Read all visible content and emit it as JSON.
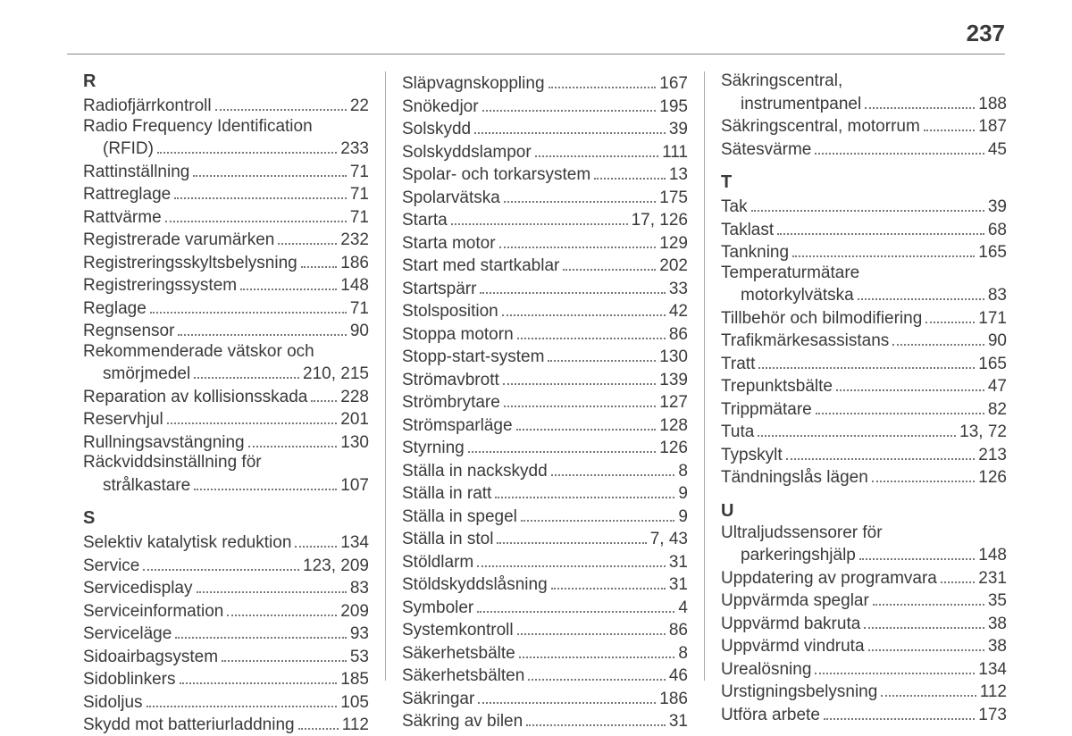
{
  "page_number": "237",
  "columns": [
    {
      "groups": [
        {
          "heading": "R",
          "items": [
            {
              "label": "Radiofjärrkontroll",
              "page": "22"
            },
            {
              "label": "Radio Frequency Identification",
              "page": "",
              "nowrap": true
            },
            {
              "label": "(RFID)",
              "page": "233",
              "cont": true
            },
            {
              "label": "Rattinställning",
              "page": "71"
            },
            {
              "label": "Rattreglage",
              "page": "71"
            },
            {
              "label": "Rattvärme",
              "page": "71"
            },
            {
              "label": "Registrerade varumärken",
              "page": "232"
            },
            {
              "label": "Registreringsskyltsbelysning",
              "page": "186"
            },
            {
              "label": "Registreringssystem",
              "page": "148"
            },
            {
              "label": "Reglage",
              "page": "71"
            },
            {
              "label": "Regnsensor",
              "page": "90"
            },
            {
              "label": "Rekommenderade vätskor och",
              "page": "",
              "nowrap": true
            },
            {
              "label": "smörjmedel",
              "page": "210, 215",
              "cont": true
            },
            {
              "label": "Reparation av kollisionsskada",
              "page": "228"
            },
            {
              "label": "Reservhjul",
              "page": "201"
            },
            {
              "label": "Rullningsavstängning",
              "page": "130"
            },
            {
              "label": "Räckviddsinställning för",
              "page": "",
              "nowrap": true
            },
            {
              "label": "strålkastare",
              "page": "107",
              "cont": true
            }
          ]
        },
        {
          "heading": "S",
          "items": [
            {
              "label": "Selektiv katalytisk reduktion",
              "page": "134"
            },
            {
              "label": "Service",
              "page": "123, 209"
            },
            {
              "label": "Servicedisplay",
              "page": "83"
            },
            {
              "label": "Serviceinformation",
              "page": "209"
            },
            {
              "label": "Serviceläge",
              "page": "93"
            },
            {
              "label": "Sidoairbagsystem",
              "page": "53"
            },
            {
              "label": "Sidoblinkers",
              "page": "185"
            },
            {
              "label": "Sidoljus",
              "page": "105"
            },
            {
              "label": "Skydd mot batteriurladdning",
              "page": "112"
            }
          ]
        }
      ]
    },
    {
      "groups": [
        {
          "heading": "",
          "items": [
            {
              "label": "Släpvagnskoppling",
              "page": "167"
            },
            {
              "label": "Snökedjor",
              "page": "195"
            },
            {
              "label": "Solskydd",
              "page": "39"
            },
            {
              "label": "Solskyddslampor",
              "page": "111"
            },
            {
              "label": "Spolar- och torkarsystem",
              "page": "13"
            },
            {
              "label": "Spolarvätska",
              "page": "175"
            },
            {
              "label": "Starta",
              "page": "17, 126"
            },
            {
              "label": "Starta motor",
              "page": "129"
            },
            {
              "label": "Start med startkablar",
              "page": "202"
            },
            {
              "label": "Startspärr",
              "page": "33"
            },
            {
              "label": "Stolsposition",
              "page": "42"
            },
            {
              "label": "Stoppa motorn",
              "page": "86"
            },
            {
              "label": "Stopp-start-system",
              "page": "130"
            },
            {
              "label": "Strömavbrott",
              "page": "139"
            },
            {
              "label": "Strömbrytare",
              "page": "127"
            },
            {
              "label": "Strömsparläge",
              "page": "128"
            },
            {
              "label": "Styrning",
              "page": "126"
            },
            {
              "label": "Ställa in nackskydd",
              "page": "8"
            },
            {
              "label": "Ställa in ratt",
              "page": "9"
            },
            {
              "label": "Ställa in spegel",
              "page": "9"
            },
            {
              "label": "Ställa in stol",
              "page": "7, 43"
            },
            {
              "label": "Stöldlarm",
              "page": "31"
            },
            {
              "label": "Stöldskyddslåsning",
              "page": "31"
            },
            {
              "label": "Symboler",
              "page": "4"
            },
            {
              "label": "Systemkontroll",
              "page": "86"
            },
            {
              "label": "Säkerhetsbälte",
              "page": "8"
            },
            {
              "label": "Säkerhetsbälten",
              "page": "46"
            },
            {
              "label": "Säkringar",
              "page": "186"
            },
            {
              "label": "Säkring av bilen",
              "page": "31"
            }
          ]
        }
      ]
    },
    {
      "groups": [
        {
          "heading": "",
          "items": [
            {
              "label": "Säkringscentral,",
              "page": "",
              "nowrap": true
            },
            {
              "label": "instrumentpanel",
              "page": "188",
              "cont": true
            },
            {
              "label": "Säkringscentral, motorrum",
              "page": "187"
            },
            {
              "label": "Sätesvärme",
              "page": "45"
            }
          ]
        },
        {
          "heading": "T",
          "items": [
            {
              "label": "Tak",
              "page": "39"
            },
            {
              "label": "Taklast",
              "page": "68"
            },
            {
              "label": "Tankning",
              "page": "165"
            },
            {
              "label": "Temperaturmätare",
              "page": "",
              "nowrap": true
            },
            {
              "label": "motorkylvätska",
              "page": "83",
              "cont": true
            },
            {
              "label": "Tillbehör och bilmodifiering",
              "page": "171"
            },
            {
              "label": "Trafikmärkesassistans",
              "page": "90"
            },
            {
              "label": "Tratt",
              "page": "165"
            },
            {
              "label": "Trepunktsbälte",
              "page": "47"
            },
            {
              "label": "Trippmätare",
              "page": "82"
            },
            {
              "label": "Tuta",
              "page": "13, 72"
            },
            {
              "label": "Typskylt",
              "page": "213"
            },
            {
              "label": "Tändningslås lägen",
              "page": "126"
            }
          ]
        },
        {
          "heading": "U",
          "items": [
            {
              "label": "Ultraljudssensorer för",
              "page": "",
              "nowrap": true
            },
            {
              "label": "parkeringshjälp",
              "page": "148",
              "cont": true
            },
            {
              "label": "Uppdatering av programvara",
              "page": "231"
            },
            {
              "label": "Uppvärmda speglar",
              "page": "35"
            },
            {
              "label": "Uppvärmd bakruta",
              "page": "38"
            },
            {
              "label": "Uppvärmd vindruta",
              "page": "38"
            },
            {
              "label": "Urealösning",
              "page": "134"
            },
            {
              "label": "Urstigningsbelysning",
              "page": "112"
            },
            {
              "label": "Utföra arbete",
              "page": "173"
            }
          ]
        }
      ]
    }
  ]
}
